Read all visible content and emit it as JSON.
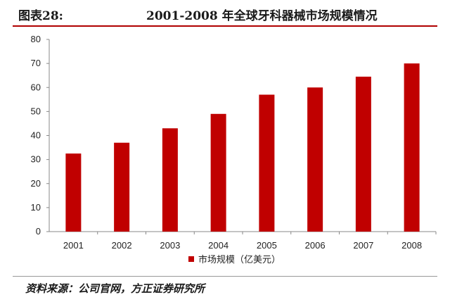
{
  "header": {
    "figure_label": "图表28:",
    "title": "2001-2008 年全球牙科器械市场规模情况"
  },
  "chart_data": {
    "type": "bar",
    "categories": [
      "2001",
      "2002",
      "2003",
      "2004",
      "2005",
      "2006",
      "2007",
      "2008"
    ],
    "series": [
      {
        "name": "市场规模（亿美元）",
        "values": [
          32.5,
          37,
          43,
          49,
          57,
          60,
          64.5,
          70
        ]
      }
    ],
    "ylim": [
      0,
      80
    ],
    "yticks": [
      0,
      10,
      20,
      30,
      40,
      50,
      60,
      70,
      80
    ],
    "grid": false,
    "legend_position": "bottom",
    "bar_color": "#c00000"
  },
  "footer": {
    "source": "资料来源：公司官网，方正证券研究所"
  }
}
